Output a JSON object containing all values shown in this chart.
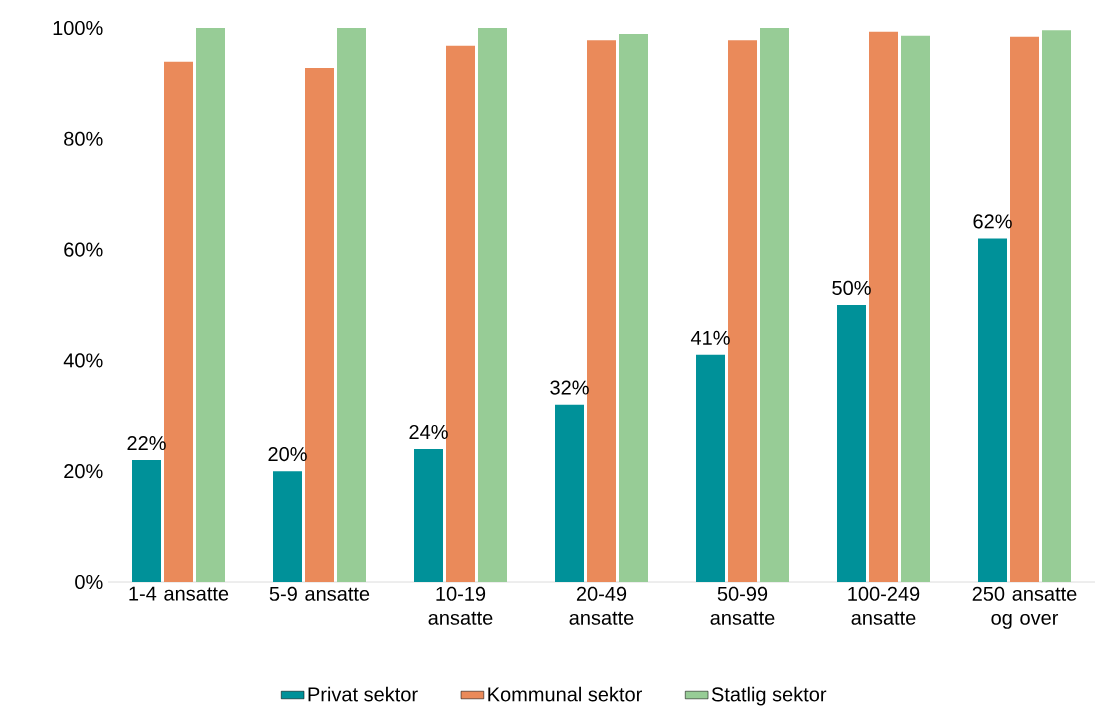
{
  "chart_data": {
    "type": "bar",
    "categories": [
      "1-4 ansatte",
      "5-9 ansatte",
      "10-19 ansatte",
      "20-49 ansatte",
      "50-99 ansatte",
      "100-249 ansatte",
      "250 ansatte og over"
    ],
    "series": [
      {
        "name": "Privat sektor",
        "color": "#009199",
        "values": [
          22,
          20,
          24,
          32,
          41,
          50,
          62
        ],
        "value_labels": [
          "22%",
          "20%",
          "24%",
          "32%",
          "41%",
          "50%",
          "62%"
        ]
      },
      {
        "name": "Kommunal sektor",
        "color": "#ea8a5a",
        "values": [
          93.9,
          92.8,
          96.8,
          97.8,
          97.8,
          99.3,
          98.4
        ]
      },
      {
        "name": "Statlig sektor",
        "color": "#97cc96",
        "values": [
          100,
          100,
          100,
          98.9,
          100,
          98.6,
          99.6
        ]
      }
    ],
    "ylim": [
      0,
      100
    ],
    "yticks": [
      {
        "value": 0,
        "label": "0%"
      },
      {
        "value": 20,
        "label": "20%"
      },
      {
        "value": 40,
        "label": "40%"
      },
      {
        "value": 60,
        "label": "60%"
      },
      {
        "value": 80,
        "label": "80%"
      },
      {
        "value": 100,
        "label": "100%"
      }
    ],
    "grid": false,
    "legend": "bottom"
  }
}
